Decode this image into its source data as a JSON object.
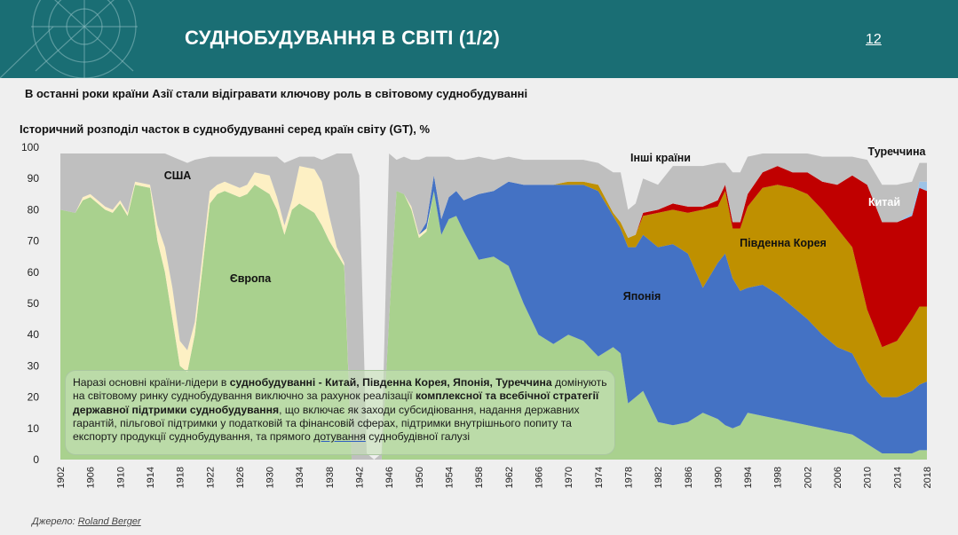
{
  "header": {
    "title": "СУДНОБУДУВАННЯ В СВІТІ (1/2)",
    "page_number": "12"
  },
  "subtitle": "В останні роки країни Азії стали відігравати ключову роль в світовому суднобудуванні",
  "note": {
    "p1": "Наразі основні країни-лідери в ",
    "b1": "суднобудуванні -  Китай, Південна Корея, Японія, Туреччина",
    "p2": " домінують на світовому ринку суднобудування виключно за рахунок реалізації ",
    "b2": "комплексної та всебічної  стратегії державної підтримки суднобудування",
    "p3": ", що включає як заходи субсидіювання, надання державних гарантій, пільгової підтримки у податковій та фінансовій сферах, підтримки внутрішнього попиту та експорту продукції суднобудування, та прямого ",
    "u1": "дотування",
    "p4": " суднобудівної галузі"
  },
  "source": {
    "prefix": "Джерело: ",
    "name": "Roland Berger"
  },
  "colors": {
    "header_bg": "#1a6e74",
    "europe": "#a9d18e",
    "usa": "#fdf0c4",
    "japan": "#4472c4",
    "korea": "#bf9000",
    "china": "#c00000",
    "turkey": "#9dc3e6",
    "other": "#bfbfbf"
  },
  "chart_data": {
    "type": "area",
    "stacked": true,
    "title": "Історичний розподіл часток в суднобудуванні серед країн світу (GT), %",
    "xlim": [
      1902,
      2018
    ],
    "ylim": [
      0,
      100
    ],
    "y_ticks": [
      0,
      10,
      20,
      30,
      40,
      50,
      60,
      70,
      80,
      90,
      100
    ],
    "x_ticks": [
      1902,
      1906,
      1910,
      1914,
      1918,
      1922,
      1926,
      1930,
      1934,
      1938,
      1942,
      1946,
      1950,
      1954,
      1958,
      1962,
      1966,
      1970,
      1974,
      1978,
      1982,
      1986,
      1990,
      1994,
      1998,
      2002,
      2006,
      2010,
      2014,
      2018
    ],
    "x": [
      1902,
      1904,
      1905,
      1906,
      1908,
      1909,
      1910,
      1911,
      1912,
      1914,
      1915,
      1916,
      1917,
      1918,
      1919,
      1920,
      1922,
      1923,
      1924,
      1926,
      1927,
      1928,
      1930,
      1931,
      1932,
      1933,
      1934,
      1936,
      1937,
      1938,
      1939,
      1940,
      1941,
      1942,
      1943,
      1944,
      1945,
      1946,
      1947,
      1948,
      1949,
      1950,
      1951,
      1952,
      1953,
      1954,
      1955,
      1956,
      1958,
      1960,
      1962,
      1964,
      1966,
      1968,
      1970,
      1972,
      1974,
      1976,
      1977,
      1978,
      1979,
      1980,
      1982,
      1984,
      1986,
      1988,
      1990,
      1991,
      1992,
      1993,
      1994,
      1996,
      1998,
      2000,
      2002,
      2004,
      2006,
      2008,
      2010,
      2012,
      2014,
      2016,
      2017,
      2018
    ],
    "series": [
      {
        "name": "Європа",
        "values": [
          80,
          79,
          83,
          84,
          80,
          79,
          82,
          78,
          88,
          87,
          70,
          60,
          45,
          30,
          28,
          40,
          82,
          85,
          86,
          84,
          85,
          88,
          85,
          80,
          72,
          80,
          82,
          79,
          75,
          70,
          66,
          62,
          0,
          0,
          0,
          0,
          0,
          45,
          86,
          85,
          80,
          71,
          73,
          86,
          72,
          77,
          78,
          73,
          64,
          65,
          62,
          50,
          40,
          37,
          40,
          38,
          33,
          36,
          34,
          18,
          20,
          22,
          12,
          11,
          12,
          15,
          13,
          11,
          10,
          11,
          15,
          14,
          13,
          12,
          11,
          10,
          9,
          8,
          5,
          2,
          2,
          2,
          3,
          3
        ]
      },
      {
        "name": "США",
        "values": [
          0,
          0,
          1,
          1,
          1,
          1,
          1,
          1,
          1,
          1,
          5,
          8,
          10,
          8,
          7,
          4,
          4,
          3,
          3,
          3,
          3,
          4,
          6,
          4,
          3,
          3,
          12,
          14,
          14,
          8,
          2,
          1,
          0,
          0,
          0,
          0,
          0,
          0,
          0,
          0,
          1,
          1,
          1,
          0,
          0,
          0,
          0,
          0,
          0,
          0,
          0,
          0,
          0,
          0,
          0,
          0,
          0,
          0,
          0,
          0,
          0,
          0,
          0,
          0,
          0,
          0,
          0,
          0,
          0,
          0,
          0,
          0,
          0,
          0,
          0,
          0,
          0,
          0,
          0,
          0,
          0,
          0,
          0,
          0
        ]
      },
      {
        "name": "Японія",
        "values": [
          0,
          0,
          0,
          0,
          0,
          0,
          0,
          0,
          0,
          0,
          0,
          0,
          0,
          0,
          0,
          0,
          0,
          0,
          0,
          0,
          0,
          0,
          0,
          0,
          0,
          0,
          0,
          0,
          0,
          0,
          0,
          0,
          0,
          0,
          0,
          0,
          0,
          0,
          0,
          0,
          0,
          0,
          2,
          5,
          5,
          7,
          8,
          10,
          21,
          21,
          27,
          38,
          48,
          51,
          48,
          50,
          53,
          42,
          40,
          50,
          48,
          50,
          56,
          58,
          54,
          40,
          50,
          55,
          48,
          43,
          40,
          42,
          40,
          37,
          34,
          30,
          27,
          26,
          20,
          18,
          18,
          20,
          21,
          22
        ]
      },
      {
        "name": "Південна Корея",
        "values": [
          0,
          0,
          0,
          0,
          0,
          0,
          0,
          0,
          0,
          0,
          0,
          0,
          0,
          0,
          0,
          0,
          0,
          0,
          0,
          0,
          0,
          0,
          0,
          0,
          0,
          0,
          0,
          0,
          0,
          0,
          0,
          0,
          0,
          0,
          0,
          0,
          0,
          0,
          0,
          0,
          0,
          0,
          0,
          0,
          0,
          0,
          0,
          0,
          0,
          0,
          0,
          0,
          0,
          0,
          1,
          1,
          2,
          1,
          2,
          3,
          4,
          6,
          11,
          11,
          13,
          25,
          18,
          20,
          16,
          20,
          26,
          31,
          35,
          38,
          40,
          40,
          38,
          34,
          23,
          16,
          18,
          23,
          25,
          24
        ]
      },
      {
        "name": "Китай",
        "values": [
          0,
          0,
          0,
          0,
          0,
          0,
          0,
          0,
          0,
          0,
          0,
          0,
          0,
          0,
          0,
          0,
          0,
          0,
          0,
          0,
          0,
          0,
          0,
          0,
          0,
          0,
          0,
          0,
          0,
          0,
          0,
          0,
          0,
          0,
          0,
          0,
          0,
          0,
          0,
          0,
          0,
          0,
          0,
          0,
          0,
          0,
          0,
          0,
          0,
          0,
          0,
          0,
          0,
          0,
          0,
          0,
          0,
          0,
          0,
          0,
          0,
          1,
          1,
          2,
          2,
          1,
          2,
          2,
          2,
          2,
          4,
          5,
          6,
          5,
          7,
          9,
          14,
          23,
          40,
          40,
          38,
          33,
          38,
          37
        ]
      },
      {
        "name": "Туреччина",
        "values": [
          0,
          0,
          0,
          0,
          0,
          0,
          0,
          0,
          0,
          0,
          0,
          0,
          0,
          0,
          0,
          0,
          0,
          0,
          0,
          0,
          0,
          0,
          0,
          0,
          0,
          0,
          0,
          0,
          0,
          0,
          0,
          0,
          0,
          0,
          0,
          0,
          0,
          0,
          0,
          0,
          0,
          0,
          0,
          0,
          0,
          0,
          0,
          0,
          0,
          0,
          0,
          0,
          0,
          0,
          0,
          0,
          0,
          0,
          0,
          0,
          0,
          0,
          0,
          0,
          0,
          0,
          0,
          0,
          0,
          0,
          0,
          0,
          0,
          0,
          0,
          0,
          0,
          0,
          0,
          0,
          0,
          1,
          2,
          3
        ]
      },
      {
        "name": "Інші країни",
        "values": [
          18,
          19,
          14,
          13,
          17,
          18,
          15,
          19,
          9,
          10,
          23,
          30,
          42,
          58,
          60,
          52,
          11,
          9,
          8,
          10,
          9,
          5,
          6,
          13,
          20,
          13,
          3,
          4,
          7,
          19,
          30,
          35,
          98,
          91,
          2,
          0,
          2,
          53,
          10,
          12,
          15,
          24,
          21,
          6,
          20,
          13,
          10,
          13,
          12,
          10,
          8,
          8,
          8,
          8,
          7,
          7,
          7,
          13,
          16,
          9,
          10,
          11,
          8,
          12,
          13,
          13,
          12,
          7,
          16,
          16,
          12,
          6,
          4,
          6,
          6,
          8,
          9,
          6,
          8,
          12,
          12,
          10,
          6,
          6
        ]
      }
    ],
    "series_labels": [
      "США",
      "Європа",
      "Японія",
      "Південна Корея",
      "Китай",
      "Інші країни",
      "Туреччина"
    ]
  }
}
